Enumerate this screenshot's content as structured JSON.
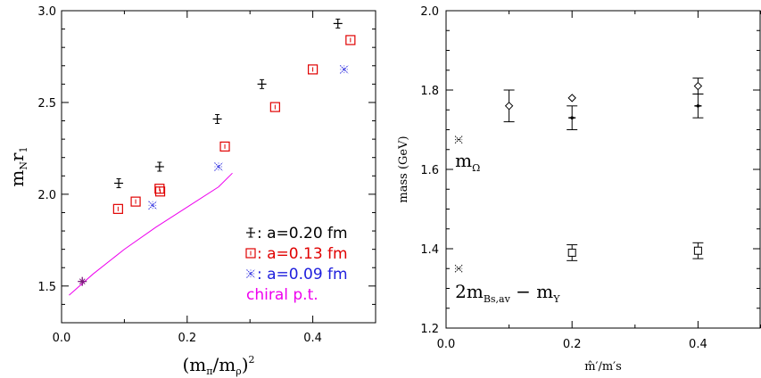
{
  "chart_data": [
    {
      "type": "scatter",
      "xlim": [
        0.0,
        0.5
      ],
      "ylim": [
        1.3,
        3.0
      ],
      "x_ticks": [
        "0.0",
        "0.2",
        "0.4"
      ],
      "y_ticks": [
        "1.5",
        "2.0",
        "2.5",
        "3.0"
      ],
      "xlabel": {
        "main": "(m",
        "sub1": "π",
        "mid": "/m",
        "sub2": "ρ",
        "tail": ")",
        "sup": "2"
      },
      "ylabel": {
        "main": "m",
        "sub": "N",
        "tail": "r",
        "sub2": "1"
      },
      "series": [
        {
          "name": "a=0.20 fm",
          "legend": "a=0.20 fm",
          "color": "#000000",
          "marker": "plus-error",
          "points": [
            [
              0.091,
              2.06
            ],
            [
              0.156,
              2.15
            ],
            [
              0.248,
              2.41
            ],
            [
              0.319,
              2.6
            ],
            [
              0.44,
              2.93
            ]
          ]
        },
        {
          "name": "a=0.13 fm",
          "legend": "a=0.13 fm",
          "color": "#e00000",
          "marker": "square",
          "points": [
            [
              0.09,
              1.92
            ],
            [
              0.118,
              1.96
            ],
            [
              0.156,
              2.03
            ],
            [
              0.157,
              2.015
            ],
            [
              0.26,
              2.26
            ],
            [
              0.34,
              2.475
            ],
            [
              0.4,
              2.68
            ],
            [
              0.46,
              2.84
            ]
          ]
        },
        {
          "name": "a=0.09 fm",
          "legend": "a=0.09 fm",
          "color": "#2020dd",
          "marker": "burst",
          "points": [
            [
              0.145,
              1.94
            ],
            [
              0.25,
              2.15
            ],
            [
              0.45,
              2.68
            ]
          ]
        },
        {
          "name": "chiral p.t.",
          "legend": "chiral p.t.",
          "color": "#ee00ee",
          "marker": "line",
          "curve": [
            [
              0.012,
              1.45
            ],
            [
              0.05,
              1.565
            ],
            [
              0.1,
              1.7
            ],
            [
              0.15,
              1.82
            ],
            [
              0.2,
              1.93
            ],
            [
              0.25,
              2.04
            ],
            [
              0.272,
              2.115
            ]
          ]
        },
        {
          "name": "",
          "color": "#7a1a7a",
          "marker": "star",
          "points": [
            [
              0.033,
              1.525
            ]
          ]
        }
      ],
      "legend_prefix_colon": ":"
    },
    {
      "type": "scatter",
      "xlim": [
        0.0,
        0.5
      ],
      "ylim": [
        1.2,
        2.0
      ],
      "x_ticks": [
        "0.0",
        "0.2",
        "0.4"
      ],
      "y_ticks": [
        "1.2",
        "1.4",
        "1.6",
        "1.8",
        "2.0"
      ],
      "xlabel": "m̂′/m′s",
      "ylabel": "mass (GeV)",
      "series": [
        {
          "name": "",
          "marker": "diamond",
          "color": "#000000",
          "points": [
            [
              0.1,
              1.76,
              0.04
            ],
            [
              0.2,
              1.78,
              0.0
            ],
            [
              0.4,
              1.81,
              0.02
            ]
          ]
        },
        {
          "name": "",
          "marker": "cross-error",
          "color": "#000000",
          "points": [
            [
              0.2,
              1.73,
              0.03
            ],
            [
              0.4,
              1.76,
              0.03
            ]
          ]
        },
        {
          "name": "",
          "marker": "square-error",
          "color": "#000000",
          "points": [
            [
              0.2,
              1.39,
              0.02
            ],
            [
              0.4,
              1.395,
              0.02
            ]
          ]
        },
        {
          "name": "",
          "marker": "burst",
          "color": "#000000",
          "points": [
            [
              0.02,
              1.675
            ],
            [
              0.02,
              1.35
            ]
          ]
        }
      ],
      "annotations": [
        {
          "main": "m",
          "sub": "Ω",
          "x": 0.02,
          "y": 1.62
        },
        {
          "main": "2m",
          "sub": "Bs,av",
          "mid": " − m",
          "sub2": "Υ",
          "x": 0.02,
          "y": 1.29
        }
      ]
    }
  ]
}
